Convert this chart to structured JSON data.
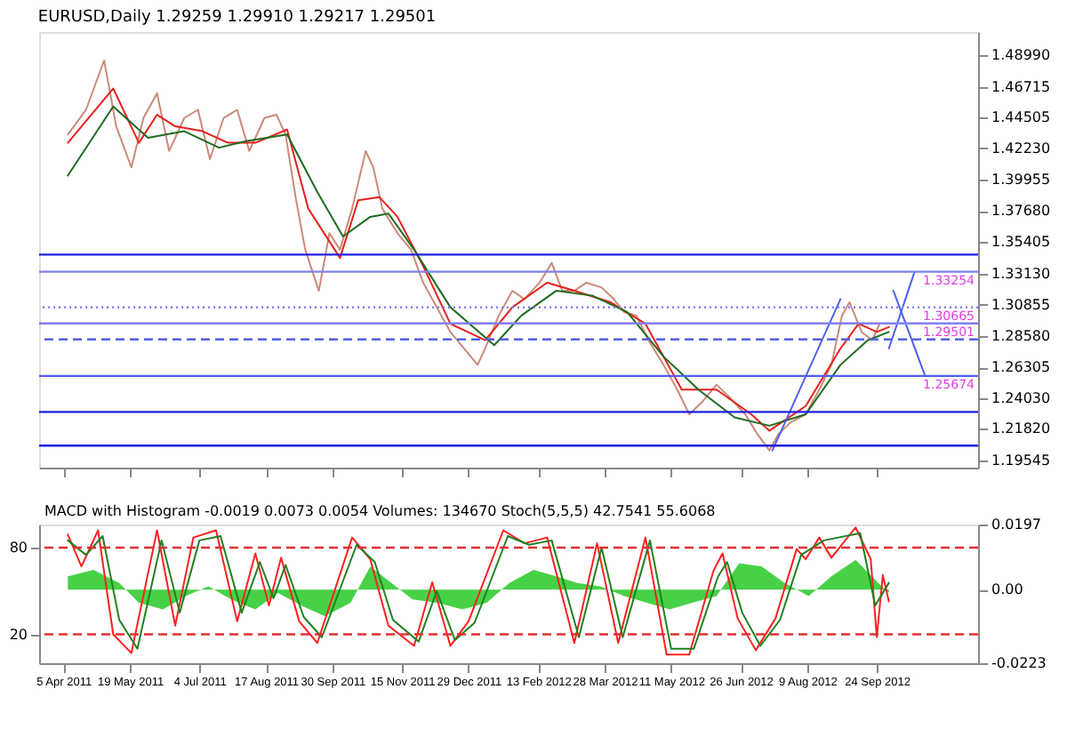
{
  "chart_data": [
    {
      "type": "line",
      "title": "EURUSD,Daily  1.29259 1.29910 1.29217 1.29501",
      "tick_labels": "y",
      "xlim": [
        "2011-03-20",
        "2012-11-30"
      ],
      "xticks": [
        {
          "value": "2011-04-05",
          "label": null
        },
        {
          "value": "2011-05-19",
          "label": null
        },
        {
          "value": "2011-07-04",
          "label": null
        },
        {
          "value": "2011-08-17",
          "label": null
        },
        {
          "value": "2011-09-30",
          "label": null
        },
        {
          "value": "2011-11-15",
          "label": null
        },
        {
          "value": "2011-12-29",
          "label": null
        },
        {
          "value": "2012-02-13",
          "label": null
        },
        {
          "value": "2012-03-28",
          "label": null
        },
        {
          "value": "2012-05-11",
          "label": null
        },
        {
          "value": "2012-06-26",
          "label": null
        },
        {
          "value": "2012-08-09",
          "label": null
        },
        {
          "value": "2012-09-24",
          "label": null
        }
      ],
      "ylim": [
        1.19,
        1.507
      ],
      "yticks": [
        {
          "value": 1.4899,
          "label": "1.48990"
        },
        1.46715,
        1.44505,
        {
          "value": 1.4223,
          "label": "1.42230"
        },
        1.39955,
        {
          "value": 1.3768,
          "label": "1.37680"
        },
        1.35405,
        {
          "value": 1.3313,
          "label": "1.33130"
        },
        1.30855,
        {
          "value": 1.2858,
          "label": "1.28580"
        },
        1.26305,
        {
          "value": 1.2403,
          "label": "1.24030"
        },
        {
          "value": 1.2182,
          "label": "1.21820"
        },
        1.19545
      ],
      "series": [
        {
          "color": "#c98a7a",
          "x": [
            "2011-04-08",
            "2011-04-20",
            "2011-05-02",
            "2011-05-10",
            "2011-05-20",
            "2011-05-28",
            "2011-06-06",
            "2011-06-14",
            "2011-06-24",
            "2011-07-03",
            "2011-07-11",
            "2011-07-20",
            "2011-07-29",
            "2011-08-06",
            "2011-08-16",
            "2011-08-24",
            "2011-08-30",
            "2011-09-06",
            "2011-09-12",
            "2011-09-21",
            "2011-09-28",
            "2011-10-05",
            "2011-10-13",
            "2011-10-22",
            "2011-10-27",
            "2011-11-02",
            "2011-11-12",
            "2011-11-21",
            "2011-11-29",
            "2011-12-08",
            "2011-12-17",
            "2011-12-26",
            "2012-01-04",
            "2012-01-09",
            "2012-01-18",
            "2012-01-27",
            "2012-02-04",
            "2012-02-14",
            "2012-02-22",
            "2012-02-29",
            "2012-03-08",
            "2012-03-16",
            "2012-03-26",
            "2012-04-03",
            "2012-04-10",
            "2012-04-18",
            "2012-04-26",
            "2012-05-06",
            "2012-05-15",
            "2012-05-23",
            "2012-06-01",
            "2012-06-10",
            "2012-06-19",
            "2012-06-29",
            "2012-07-07",
            "2012-07-15",
            "2012-07-21",
            "2012-07-29",
            "2012-08-08",
            "2012-08-17",
            "2012-08-25",
            "2012-09-01",
            "2012-09-06",
            "2012-09-14",
            "2012-09-21",
            "2012-09-26",
            "2012-10-02"
          ],
          "values": [
            1.4324,
            1.4504,
            1.4863,
            1.4384,
            1.4085,
            1.4444,
            1.4624,
            1.4204,
            1.4444,
            1.4504,
            1.4145,
            1.4444,
            1.4504,
            1.4204,
            1.4444,
            1.4468,
            1.4324,
            1.3845,
            1.3486,
            1.3187,
            1.3606,
            1.3486,
            1.3785,
            1.4204,
            1.4085,
            1.3785,
            1.3606,
            1.3486,
            1.3246,
            1.3067,
            1.2887,
            1.2767,
            1.2648,
            1.2767,
            1.3007,
            1.3187,
            1.3127,
            1.3246,
            1.339,
            1.3187,
            1.3187,
            1.3246,
            1.3211,
            1.3127,
            1.3031,
            1.3007,
            1.2827,
            1.2648,
            1.2468,
            1.2288,
            1.2384,
            1.2504,
            1.2408,
            1.2288,
            1.2145,
            1.2025,
            1.2145,
            1.2229,
            1.2288,
            1.2468,
            1.2648,
            1.3007,
            1.3103,
            1.2887,
            1.2827,
            1.2948,
            1.29501
          ]
        },
        {
          "color": "#e8201c",
          "x": [
            "2011-04-08",
            "2011-05-08",
            "2011-05-25",
            "2011-06-06",
            "2011-06-18",
            "2011-07-06",
            "2011-07-23",
            "2011-08-10",
            "2011-08-31",
            "2011-09-14",
            "2011-10-05",
            "2011-10-17",
            "2011-10-31",
            "2011-11-12",
            "2011-11-29",
            "2011-12-17",
            "2012-01-09",
            "2012-01-27",
            "2012-02-19",
            "2012-03-08",
            "2012-04-01",
            "2012-04-24",
            "2012-05-18",
            "2012-06-10",
            "2012-07-03",
            "2012-07-15",
            "2012-08-08",
            "2012-08-31",
            "2012-09-12",
            "2012-09-24",
            "2012-10-02"
          ],
          "values": [
            1.4264,
            1.4659,
            1.4264,
            1.4468,
            1.4384,
            1.4348,
            1.4264,
            1.4264,
            1.436,
            1.3785,
            1.3426,
            1.3845,
            1.3869,
            1.3725,
            1.3366,
            1.2947,
            1.2827,
            1.3067,
            1.3246,
            1.3187,
            1.3103,
            1.2947,
            1.2468,
            1.2468,
            1.2288,
            1.2169,
            1.2348,
            1.2767,
            1.2947,
            1.2887,
            1.2923
          ]
        },
        {
          "color": "#1f6b1f",
          "x": [
            "2011-04-08",
            "2011-05-08",
            "2011-05-31",
            "2011-06-24",
            "2011-07-17",
            "2011-08-04",
            "2011-08-31",
            "2011-09-20",
            "2011-10-07",
            "2011-10-25",
            "2011-11-06",
            "2011-11-23",
            "2011-12-17",
            "2012-01-15",
            "2012-02-02",
            "2012-02-25",
            "2012-03-20",
            "2012-04-12",
            "2012-05-06",
            "2012-05-29",
            "2012-06-22",
            "2012-07-15",
            "2012-08-08",
            "2012-08-31",
            "2012-09-18",
            "2012-10-02"
          ],
          "values": [
            1.4025,
            1.4528,
            1.43,
            1.4348,
            1.4228,
            1.4276,
            1.4324,
            1.3905,
            1.3582,
            1.3725,
            1.3749,
            1.3486,
            1.3067,
            1.2791,
            1.3007,
            1.3187,
            1.3151,
            1.3031,
            1.2708,
            1.2468,
            1.2265,
            1.2205,
            1.2288,
            1.2648,
            1.2827,
            1.2887
          ]
        },
        {
          "color": "#5060e8",
          "x": [
            "2012-07-17",
            "2012-08-31"
          ],
          "values": [
            1.2025,
            1.3127
          ]
        },
        {
          "color": "#5060e8",
          "x": [
            "2012-10-02",
            "2012-10-19"
          ],
          "values": [
            1.2767,
            1.33254
          ]
        },
        {
          "color": "#5060e8",
          "x": [
            "2012-10-05",
            "2012-10-26"
          ],
          "values": [
            1.3187,
            1.25674
          ]
        }
      ],
      "ref_lines": [
        {
          "axis": "y",
          "value": 1.345,
          "color": "#2020e0"
        },
        {
          "axis": "y",
          "value": 1.33254,
          "label": "1.33254",
          "color": "#8080f0"
        },
        {
          "axis": "y",
          "value": 1.30665,
          "label": "1.30665",
          "color": "#8080f0",
          "line_style": "dotted"
        },
        {
          "axis": "y",
          "value": 1.29501,
          "label": "1.29501",
          "color": "#8080f0"
        },
        {
          "axis": "y",
          "value": 1.2833,
          "color": "#5060e8",
          "line_style": "dashed"
        },
        {
          "axis": "y",
          "value": 1.25674,
          "label": "1.25674",
          "color": "#5060e8"
        },
        {
          "axis": "y",
          "value": 1.2305,
          "color": "#2020e0"
        },
        {
          "axis": "y",
          "value": 1.206,
          "color": "#2020e0"
        }
      ]
    },
    {
      "type": "line",
      "annotations": [
        "MACD with Histogram -0.0019 0.0073 0.0054  Volumes: 134670  Stoch(5,5,5) 42.7541 55.6068"
      ],
      "xlim": [
        "2011-03-20",
        "2012-11-30"
      ],
      "xticks": [
        {
          "value": "2011-04-05",
          "label": "5 Apr 2011"
        },
        {
          "value": "2011-05-19",
          "label": "19 May 2011"
        },
        {
          "value": "2011-07-04",
          "label": "4 Jul 2011"
        },
        {
          "value": "2011-08-17",
          "label": "17 Aug 2011"
        },
        {
          "value": "2011-09-30",
          "label": "30 Sep 2011"
        },
        {
          "value": "2011-11-15",
          "label": "15 Nov 2011"
        },
        {
          "value": "2011-12-29",
          "label": "29 Dec 2011"
        },
        {
          "value": "2012-02-13",
          "label": "13 Feb 2012"
        },
        {
          "value": "2012-03-28",
          "label": "28 Mar 2012"
        },
        {
          "value": "2012-05-11",
          "label": "11 May 2012"
        },
        {
          "value": "2012-06-26",
          "label": "26 Jun 2012"
        },
        {
          "value": "2012-08-09",
          "label": "9 Aug 2012"
        },
        {
          "value": "2012-09-24",
          "label": "24 Sep 2012"
        }
      ],
      "ylim": [
        0,
        96
      ],
      "yticks": [
        80,
        20
      ],
      "y2lim": [
        -0.0223,
        0.0197
      ],
      "y2ticks": [
        0.0197,
        {
          "value": 0,
          "label": "0.00"
        },
        -0.0223
      ],
      "series": [
        {
          "type": "area",
          "axis": "y2",
          "color": "#33cc33",
          "x": [
            "2011-04-08",
            "2011-04-25",
            "2011-05-12",
            "2011-05-25",
            "2011-06-10",
            "2011-06-25",
            "2011-07-10",
            "2011-07-25",
            "2011-08-10",
            "2011-08-25",
            "2011-09-10",
            "2011-09-25",
            "2011-10-12",
            "2011-10-25",
            "2011-11-08",
            "2011-11-22",
            "2011-12-08",
            "2011-12-25",
            "2012-01-10",
            "2012-01-25",
            "2012-02-10",
            "2012-02-25",
            "2012-03-10",
            "2012-03-25",
            "2012-04-10",
            "2012-04-25",
            "2012-05-10",
            "2012-05-25",
            "2012-06-10",
            "2012-06-25",
            "2012-07-10",
            "2012-07-25",
            "2012-08-10",
            "2012-08-25",
            "2012-09-10",
            "2012-09-25",
            "2012-10-02"
          ],
          "values": [
            0.004,
            0.006,
            0.002,
            -0.004,
            -0.006,
            -0.002,
            0.001,
            -0.003,
            -0.006,
            -0.001,
            -0.005,
            -0.008,
            -0.004,
            0.007,
            0.002,
            -0.003,
            -0.004,
            -0.006,
            -0.004,
            0.002,
            0.006,
            0.004,
            0.002,
            0.001,
            -0.002,
            -0.004,
            -0.006,
            -0.004,
            -0.002,
            0.008,
            0.007,
            0.002,
            -0.002,
            0.004,
            0.009,
            0.002,
            -0.001
          ]
        },
        {
          "color": "#ff2020",
          "x": [
            "2011-04-08",
            "2011-04-17",
            "2011-04-28",
            "2011-05-08",
            "2011-05-20",
            "2011-06-06",
            "2011-06-18",
            "2011-06-30",
            "2011-07-15",
            "2011-07-29",
            "2011-08-10",
            "2011-08-19",
            "2011-08-27",
            "2011-09-08",
            "2011-09-20",
            "2011-10-13",
            "2011-10-25",
            "2011-11-06",
            "2011-11-23",
            "2011-12-05",
            "2011-12-17",
            "2011-12-29",
            "2012-01-21",
            "2012-02-04",
            "2012-02-19",
            "2012-03-08",
            "2012-03-23",
            "2012-04-06",
            "2012-04-24",
            "2012-05-08",
            "2012-05-23",
            "2012-06-08",
            "2012-06-14",
            "2012-06-24",
            "2012-07-06",
            "2012-07-19",
            "2012-08-02",
            "2012-08-08",
            "2012-08-17",
            "2012-08-25",
            "2012-09-10",
            "2012-09-20",
            "2012-09-24",
            "2012-09-28",
            "2012-10-02"
          ],
          "values": [
            89,
            67,
            92,
            20,
            7,
            92,
            26,
            87,
            92,
            29,
            76,
            40,
            73,
            29,
            14,
            87,
            72,
            26,
            12,
            56,
            12,
            29,
            92,
            83,
            87,
            14,
            83,
            14,
            87,
            6,
            6,
            64,
            76,
            31,
            9,
            31,
            79,
            72,
            87,
            73,
            94,
            72,
            18,
            61,
            42.7541
          ]
        },
        {
          "color": "#208020",
          "x": [
            "2011-04-08",
            "2011-04-20",
            "2011-05-01",
            "2011-05-12",
            "2011-05-24",
            "2011-06-09",
            "2011-06-21",
            "2011-07-04",
            "2011-07-18",
            "2011-08-01",
            "2011-08-13",
            "2011-08-22",
            "2011-08-30",
            "2011-09-11",
            "2011-09-23",
            "2011-10-16",
            "2011-10-28",
            "2011-11-09",
            "2011-11-26",
            "2011-12-08",
            "2011-12-20",
            "2012-01-02",
            "2012-01-24",
            "2012-02-07",
            "2012-02-22",
            "2012-03-11",
            "2012-03-26",
            "2012-04-09",
            "2012-04-27",
            "2012-05-11",
            "2012-05-26",
            "2012-06-11",
            "2012-06-17",
            "2012-06-27",
            "2012-07-09",
            "2012-07-22",
            "2012-08-05",
            "2012-08-20",
            "2012-09-13",
            "2012-09-23",
            "2012-10-02"
          ],
          "values": [
            85,
            75,
            88,
            30,
            10,
            85,
            35,
            85,
            88,
            35,
            70,
            45,
            68,
            32,
            18,
            82,
            70,
            30,
            15,
            50,
            16,
            28,
            88,
            82,
            85,
            18,
            80,
            18,
            85,
            10,
            10,
            60,
            70,
            35,
            12,
            30,
            75,
            85,
            90,
            40,
            55.6068
          ]
        }
      ],
      "ref_lines": [
        {
          "axis": "y",
          "value": 80,
          "color": "#e03030",
          "line_style": "dashed"
        },
        {
          "axis": "y",
          "value": 20,
          "color": "#e03030",
          "line_style": "dashed"
        }
      ]
    }
  ]
}
